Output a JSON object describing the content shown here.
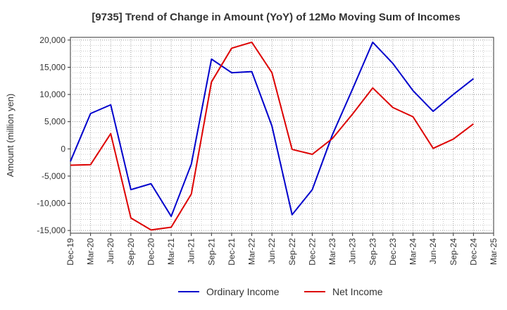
{
  "chart_data": {
    "type": "line",
    "title": "[9735]  Trend of Change in Amount (YoY) of 12Mo Moving Sum of Incomes",
    "xlabel": "",
    "ylabel": "Amount (million yen)",
    "ylim": [
      -15500,
      20500
    ],
    "yticks": [
      20000,
      15000,
      10000,
      5000,
      0,
      -5000,
      -10000,
      -15000
    ],
    "ytick_labels": [
      "20,000",
      "15,000",
      "10,000",
      "5,000",
      "0",
      "-5,000",
      "-10,000",
      "-15,000"
    ],
    "categories": [
      "Dec-19",
      "Mar-20",
      "Jun-20",
      "Sep-20",
      "Dec-20",
      "Mar-21",
      "Jun-21",
      "Sep-21",
      "Dec-21",
      "Mar-22",
      "Jun-22",
      "Sep-22",
      "Dec-22",
      "Mar-23",
      "Jun-23",
      "Sep-23",
      "Dec-23",
      "Mar-24",
      "Jun-24",
      "Sep-24",
      "Dec-24",
      "Mar-25"
    ],
    "grid": true,
    "legend_position": "bottom",
    "series": [
      {
        "name": "Ordinary Income",
        "color": "#0000cc",
        "values": [
          -2300,
          6500,
          8100,
          -7500,
          -6400,
          -12400,
          -2800,
          16500,
          14000,
          14200,
          4200,
          -12100,
          -7500,
          2600,
          11000,
          19600,
          15700,
          10700,
          6900,
          10000,
          12900,
          null
        ]
      },
      {
        "name": "Net Income",
        "color": "#dd0000",
        "values": [
          -3000,
          -2900,
          2800,
          -12700,
          -14900,
          -14400,
          -8300,
          12300,
          18500,
          19600,
          14000,
          -100,
          -1000,
          1900,
          6400,
          11200,
          7600,
          5900,
          100,
          1800,
          4600,
          null
        ]
      }
    ]
  }
}
